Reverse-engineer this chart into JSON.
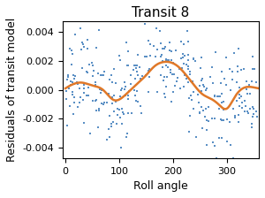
{
  "title": "Transit 8",
  "xlabel": "Roll angle",
  "ylabel": "Residuals of transit model",
  "xlim": [
    -5,
    360
  ],
  "ylim": [
    -0.0047,
    0.0047
  ],
  "xticks": [
    0,
    100,
    200,
    300
  ],
  "yticks": [
    -0.004,
    -0.002,
    0.0,
    0.002,
    0.004
  ],
  "scatter_color": "#5a8fc4",
  "line_color": "#e07828",
  "scatter_size": 3,
  "scatter_marker": "s",
  "seed": 42,
  "n_points": 350,
  "smooth_curve_x": [
    0,
    15,
    30,
    50,
    70,
    90,
    110,
    130,
    150,
    165,
    180,
    195,
    210,
    225,
    240,
    255,
    270,
    285,
    300,
    315,
    330,
    345,
    360
  ],
  "smooth_curve_y": [
    0.0001,
    0.0004,
    0.0005,
    0.0003,
    0.0,
    -0.0007,
    -0.0004,
    0.0003,
    0.001,
    0.0016,
    0.0019,
    0.0019,
    0.0016,
    0.001,
    0.0003,
    -0.0003,
    -0.0006,
    -0.001,
    -0.0013,
    -0.0005,
    0.0001,
    0.0002,
    0.0001
  ],
  "title_fontsize": 11,
  "label_fontsize": 9,
  "tick_fontsize": 8
}
